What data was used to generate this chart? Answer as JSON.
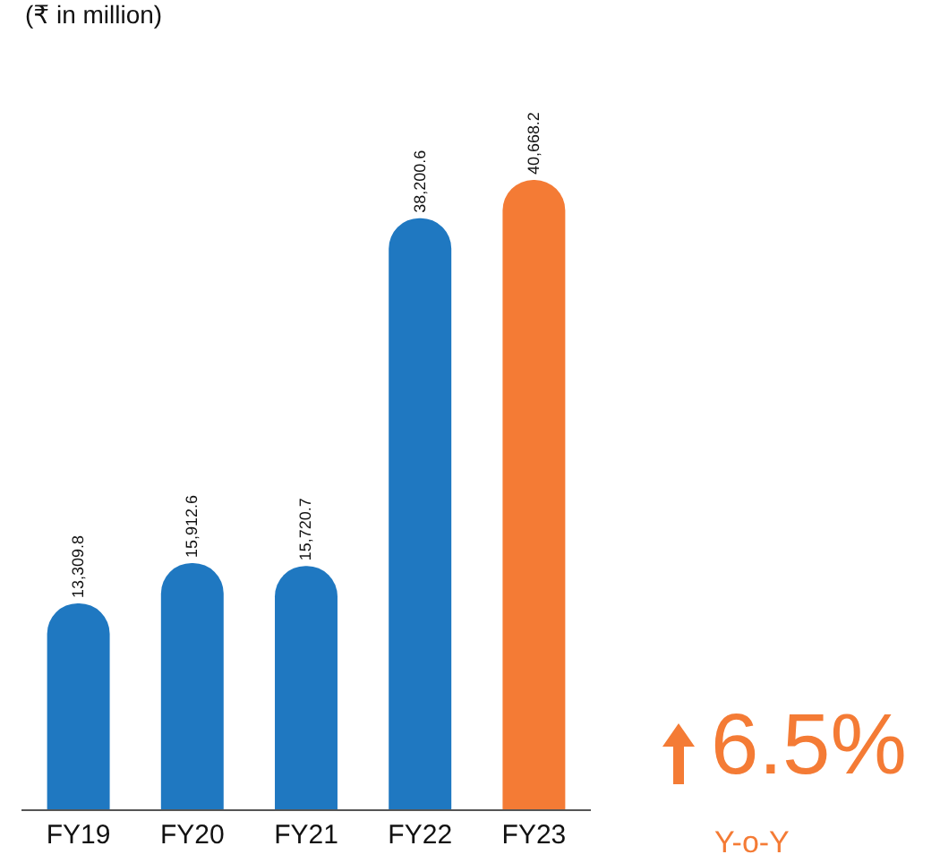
{
  "chart_data": {
    "type": "bar",
    "categories": [
      "FY19",
      "FY20",
      "FY21",
      "FY22",
      "FY23"
    ],
    "values": [
      13309.8,
      15912.6,
      15720.7,
      38200.6,
      40668.2
    ],
    "colors": [
      "#1f78c1",
      "#1f78c1",
      "#1f78c1",
      "#1f78c1",
      "#f47b35"
    ],
    "value_labels": [
      "13,309.8",
      "15,912.6",
      "15,720.7",
      "38,200.6",
      "40,668.2"
    ],
    "annotations": [
      "(₹ in million)",
      "6.5%",
      "Y-o-Y"
    ],
    "grid": false,
    "legend": false
  }
}
